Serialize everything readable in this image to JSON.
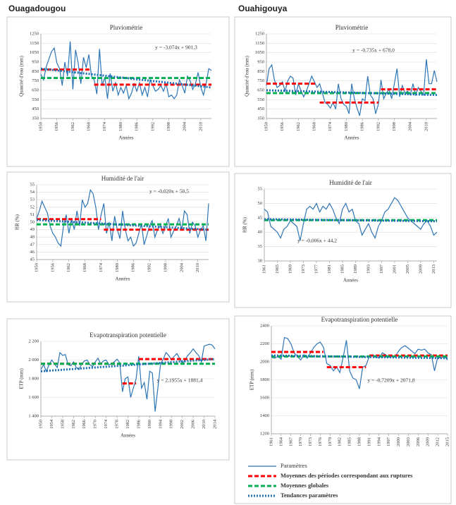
{
  "headers": [
    "Ouagadougou",
    "Ouahigouya"
  ],
  "legend": [
    {
      "name": "Paramètres",
      "color": "#2e75b6",
      "dash": "none",
      "width": 1.2
    },
    {
      "name": "Moyennes des périodes correspondant aux ruptures",
      "color": "#ff0000",
      "dash": "6 3",
      "width": 3
    },
    {
      "name": "Moyennes globales",
      "color": "#00b050",
      "dash": "6 3",
      "width": 3
    },
    {
      "name": "Tendances paramètres",
      "color": "#1f6fb5",
      "dash": "2 2",
      "width": 3
    }
  ],
  "chart_data": [
    {
      "type": "line",
      "title": "Pluviométrie",
      "y_label": "Quantité d'eau (mm)",
      "x_label": "Années",
      "annotation": "y = -3,074x + 901,3",
      "xlim": [
        1950,
        2014
      ],
      "xticks": [
        1950,
        1956,
        1962,
        1968,
        1974,
        1980,
        1986,
        1992,
        1998,
        2004,
        2010
      ],
      "ylim": [
        350,
        1250
      ],
      "yticks": [
        350,
        450,
        550,
        650,
        750,
        850,
        950,
        1050,
        1150,
        1250
      ],
      "grid": true,
      "x": [
        1950,
        1951,
        1952,
        1953,
        1954,
        1955,
        1956,
        1957,
        1958,
        1959,
        1960,
        1961,
        1962,
        1963,
        1964,
        1965,
        1966,
        1967,
        1968,
        1969,
        1970,
        1971,
        1972,
        1973,
        1974,
        1975,
        1976,
        1977,
        1978,
        1979,
        1980,
        1981,
        1982,
        1983,
        1984,
        1985,
        1986,
        1987,
        1988,
        1989,
        1990,
        1991,
        1992,
        1993,
        1994,
        1995,
        1996,
        1997,
        1998,
        1999,
        2000,
        2001,
        2002,
        2003,
        2004,
        2005,
        2006,
        2007,
        2008,
        2009,
        2010,
        2011,
        2012,
        2013,
        2014
      ],
      "values": [
        820,
        760,
        900,
        980,
        1060,
        1100,
        940,
        880,
        700,
        950,
        800,
        1170,
        660,
        1080,
        940,
        720,
        1000,
        890,
        1030,
        800,
        760,
        610,
        1090,
        700,
        790,
        560,
        830,
        640,
        730,
        600,
        680,
        620,
        700,
        560,
        620,
        720,
        640,
        730,
        600,
        680,
        580,
        760,
        700,
        640,
        660,
        700,
        640,
        720,
        580,
        600,
        560,
        600,
        760,
        700,
        620,
        800,
        750,
        660,
        720,
        840,
        680,
        600,
        720,
        880,
        860
      ],
      "period_means": [
        {
          "x": [
            1950,
            1969
          ],
          "value": 870
        },
        {
          "x": [
            1970,
            2014
          ],
          "value": 710
        }
      ],
      "global_mean": 780,
      "trend": {
        "x": [
          1950,
          2014
        ],
        "values": [
          880,
          680
        ]
      }
    },
    {
      "type": "line",
      "title": "Pluviométrie",
      "y_label": "Quantité d'eau (mm)",
      "x_label": "Années",
      "annotation": "y = -0,735x + 678,0",
      "xlim": [
        1950,
        2014
      ],
      "xticks": [
        1950,
        1956,
        1962,
        1968,
        1974,
        1980,
        1986,
        1992,
        1998,
        2004,
        2010
      ],
      "ylim": [
        350,
        1250
      ],
      "yticks": [
        350,
        450,
        550,
        650,
        750,
        850,
        950,
        1050,
        1150,
        1250
      ],
      "grid": true,
      "x": [
        1950,
        1951,
        1952,
        1953,
        1954,
        1955,
        1956,
        1957,
        1958,
        1959,
        1960,
        1961,
        1962,
        1963,
        1964,
        1965,
        1966,
        1967,
        1968,
        1969,
        1970,
        1971,
        1972,
        1973,
        1974,
        1975,
        1976,
        1977,
        1978,
        1979,
        1980,
        1981,
        1982,
        1983,
        1984,
        1985,
        1986,
        1987,
        1988,
        1989,
        1990,
        1991,
        1992,
        1993,
        1994,
        1995,
        1996,
        1997,
        1998,
        1999,
        2000,
        2001,
        2002,
        2003,
        2004,
        2005,
        2006,
        2007,
        2008,
        2009,
        2010,
        2011,
        2012,
        2013,
        2014
      ],
      "values": [
        700,
        880,
        920,
        760,
        680,
        700,
        740,
        640,
        750,
        800,
        780,
        600,
        720,
        640,
        580,
        640,
        720,
        800,
        740,
        680,
        720,
        620,
        520,
        500,
        460,
        520,
        450,
        720,
        560,
        500,
        480,
        400,
        720,
        560,
        460,
        380,
        560,
        540,
        800,
        600,
        560,
        400,
        500,
        760,
        560,
        620,
        660,
        560,
        720,
        880,
        580,
        700,
        620,
        640,
        600,
        720,
        600,
        680,
        640,
        600,
        980,
        720,
        720,
        860,
        740
      ],
      "period_means": [
        {
          "x": [
            1950,
            1969
          ],
          "value": 720
        },
        {
          "x": [
            1970,
            1992
          ],
          "value": 520
        },
        {
          "x": [
            1993,
            2014
          ],
          "value": 660
        }
      ],
      "global_mean": 620,
      "trend": {
        "x": [
          1950,
          2014
        ],
        "values": [
          650,
          600
        ]
      }
    },
    {
      "type": "line",
      "title": "Humidité de l'air",
      "y_label": "HR (%)",
      "x_label": "Années",
      "annotation": "y = -0,020x + 50,5",
      "xlim": [
        1950,
        2014
      ],
      "xticks": [
        1950,
        1956,
        1962,
        1968,
        1974,
        1980,
        1986,
        1992,
        1998,
        2004,
        2010
      ],
      "ylim": [
        45,
        55
      ],
      "yticks": [
        45,
        46,
        47,
        48,
        49,
        50,
        51,
        52,
        53,
        54,
        55
      ],
      "grid": true,
      "x": [
        1950,
        1951,
        1952,
        1953,
        1954,
        1955,
        1956,
        1957,
        1958,
        1959,
        1960,
        1961,
        1962,
        1963,
        1964,
        1965,
        1966,
        1967,
        1968,
        1969,
        1970,
        1971,
        1972,
        1973,
        1974,
        1975,
        1976,
        1977,
        1978,
        1979,
        1980,
        1981,
        1982,
        1983,
        1984,
        1985,
        1986,
        1987,
        1988,
        1989,
        1990,
        1991,
        1992,
        1993,
        1994,
        1995,
        1996,
        1997,
        1998,
        1999,
        2000,
        2001,
        2002,
        2003,
        2004,
        2005,
        2006,
        2007,
        2008,
        2009,
        2010,
        2011,
        2012,
        2013,
        2014
      ],
      "values": [
        50.5,
        51.5,
        52.8,
        52.0,
        51.2,
        49.5,
        48.5,
        48.0,
        47.2,
        46.8,
        49.5,
        51.0,
        48.5,
        50.5,
        49.0,
        51.5,
        49.5,
        53.0,
        52.0,
        52.5,
        54.3,
        53.8,
        52.0,
        49.0,
        51.0,
        52.5,
        48.5,
        50.0,
        47.5,
        50.8,
        49.0,
        47.8,
        51.5,
        49.0,
        47.5,
        48.0,
        46.8,
        47.2,
        48.5,
        49.8,
        47.0,
        48.2,
        49.5,
        50.2,
        48.0,
        49.0,
        49.5,
        48.5,
        49.5,
        50.5,
        48.0,
        48.8,
        49.5,
        50.5,
        49.0,
        51.5,
        51.0,
        48.5,
        50.0,
        49.5,
        48.0,
        49.0,
        49.5,
        47.5,
        52.5
      ],
      "period_means": [
        {
          "x": [
            1950,
            1974
          ],
          "value": 50.4
        },
        {
          "x": [
            1975,
            2014
          ],
          "value": 49.0
        }
      ],
      "global_mean": 49.7,
      "trend": {
        "x": [
          1950,
          2014
        ],
        "values": [
          50.3,
          49.0
        ]
      }
    },
    {
      "type": "line",
      "title": "Humidité de l'air",
      "y_label": "HR (%)",
      "x_label": "Années",
      "annotation": "y = -0,006x + 44,2",
      "xlim": [
        1961,
        2014
      ],
      "xticks": [
        1961,
        1965,
        1969,
        1973,
        1977,
        1981,
        1985,
        1989,
        1993,
        1997,
        2001,
        2005,
        2009,
        2013
      ],
      "ylim": [
        30,
        55
      ],
      "yticks": [
        30,
        35,
        40,
        45,
        50,
        55
      ],
      "grid": true,
      "x": [
        1961,
        1962,
        1963,
        1964,
        1965,
        1966,
        1967,
        1968,
        1969,
        1970,
        1971,
        1972,
        1973,
        1974,
        1975,
        1976,
        1977,
        1978,
        1979,
        1980,
        1981,
        1982,
        1983,
        1984,
        1985,
        1986,
        1987,
        1988,
        1989,
        1990,
        1991,
        1992,
        1993,
        1994,
        1995,
        1996,
        1997,
        1998,
        1999,
        2000,
        2001,
        2002,
        2003,
        2004,
        2005,
        2006,
        2007,
        2008,
        2009,
        2010,
        2011,
        2012,
        2013,
        2014
      ],
      "values": [
        48,
        47,
        42,
        41,
        40,
        38,
        41,
        42,
        44,
        43,
        42,
        37,
        43,
        48,
        49,
        48,
        50,
        47,
        49,
        48,
        50,
        48,
        45,
        43,
        48,
        50,
        47,
        48,
        44,
        43,
        39,
        41,
        43,
        40,
        38,
        42,
        44,
        47,
        48,
        50,
        52,
        51,
        49,
        47,
        45,
        44,
        43,
        42,
        41,
        43,
        44,
        42,
        39,
        40
      ],
      "global_mean": 44.2,
      "trend": {
        "x": [
          1961,
          2014
        ],
        "values": [
          44.5,
          43.8
        ]
      }
    },
    {
      "type": "line",
      "title": "Evapotranspiration potentielle",
      "y_label": "ETP (mm)",
      "x_label": "Années",
      "annotation": "y = 2,1955x + 1881,4",
      "xlim": [
        1950,
        2014
      ],
      "xticks": [
        1950,
        1954,
        1958,
        1962,
        1966,
        1970,
        1974,
        1978,
        1982,
        1986,
        1990,
        1994,
        1998,
        2002,
        2006,
        2010,
        2014
      ],
      "ylim": [
        1400,
        2200
      ],
      "yticks": [
        {
          "value": 1400,
          "label": "1 400"
        },
        {
          "value": 1600,
          "label": "1 600"
        },
        {
          "value": 1800,
          "label": "1 800"
        },
        {
          "value": 2000,
          "label": "2 000"
        },
        {
          "value": 2200,
          "label": "2 200"
        }
      ],
      "grid": true,
      "x": [
        1950,
        1951,
        1952,
        1953,
        1954,
        1955,
        1956,
        1957,
        1958,
        1959,
        1960,
        1961,
        1962,
        1963,
        1964,
        1965,
        1966,
        1967,
        1968,
        1969,
        1970,
        1971,
        1972,
        1973,
        1974,
        1975,
        1976,
        1977,
        1978,
        1979,
        1980,
        1981,
        1982,
        1983,
        1984,
        1985,
        1986,
        1987,
        1988,
        1989,
        1990,
        1991,
        1992,
        1993,
        1994,
        1995,
        1996,
        1997,
        1998,
        1999,
        2000,
        2001,
        2002,
        2003,
        2004,
        2005,
        2006,
        2007,
        2008,
        2009,
        2010,
        2011,
        2012,
        2013,
        2014
      ],
      "values": [
        1900,
        1950,
        1880,
        1950,
        2000,
        1960,
        1920,
        2080,
        2050,
        2060,
        1950,
        1940,
        1980,
        1920,
        1900,
        1960,
        1990,
        2000,
        1950,
        1930,
        1980,
        2020,
        1960,
        1990,
        2000,
        1950,
        1960,
        1980,
        2010,
        1970,
        1660,
        1800,
        1820,
        1600,
        1700,
        1800,
        2040,
        1700,
        1760,
        1580,
        1880,
        1860,
        1450,
        1700,
        1960,
        2010,
        2080,
        2050,
        2000,
        2040,
        2070,
        2020,
        1960,
        2000,
        2050,
        2080,
        2120,
        2080,
        2050,
        1980,
        2150,
        2160,
        2170,
        2160,
        2120
      ],
      "period_means": [
        {
          "x": [
            1950,
            1979
          ],
          "value": 1960
        },
        {
          "x": [
            1980,
            1985
          ],
          "value": 1750
        },
        {
          "x": [
            1986,
            2014
          ],
          "value": 2010
        }
      ],
      "global_mean": 1960,
      "trend": {
        "x": [
          1950,
          2014
        ],
        "values": [
          1880,
          2010
        ]
      }
    },
    {
      "type": "line",
      "title": "Evapotranspiration potentielle",
      "y_label": "ETP (mm)",
      "annotation": "y = -0,7209x + 2071,8",
      "xlim": [
        1961,
        2015
      ],
      "xticks": [
        1961,
        1964,
        1967,
        1970,
        1973,
        1976,
        1979,
        1982,
        1985,
        1988,
        1991,
        1994,
        1997,
        2000,
        2003,
        2006,
        2009,
        2012,
        2015
      ],
      "ylim": [
        1200,
        2400
      ],
      "yticks": [
        1200,
        1400,
        1600,
        1800,
        2000,
        2200,
        2400
      ],
      "grid": true,
      "x": [
        1961,
        1962,
        1963,
        1964,
        1965,
        1966,
        1967,
        1968,
        1969,
        1970,
        1971,
        1972,
        1973,
        1974,
        1975,
        1976,
        1977,
        1978,
        1979,
        1980,
        1981,
        1982,
        1983,
        1984,
        1985,
        1986,
        1987,
        1988,
        1989,
        1990,
        1991,
        1992,
        1993,
        1994,
        1995,
        1996,
        1997,
        1998,
        1999,
        2000,
        2001,
        2002,
        2003,
        2004,
        2005,
        2006,
        2007,
        2008,
        2009,
        2010,
        2011,
        2012,
        2013,
        2014,
        2015
      ],
      "values": [
        2050,
        2040,
        2060,
        2030,
        2270,
        2260,
        2200,
        2100,
        2060,
        2020,
        2080,
        2040,
        2100,
        2160,
        2200,
        2220,
        2160,
        1980,
        1960,
        1900,
        1940,
        1880,
        2050,
        2240,
        1900,
        1820,
        1800,
        1700,
        1940,
        1960,
        2060,
        2080,
        2060,
        2040,
        2100,
        2080,
        2050,
        2060,
        2060,
        2120,
        2160,
        2180,
        2150,
        2120,
        2090,
        2140,
        2130,
        2140,
        2100,
        2080,
        1900,
        2050,
        2040,
        2060,
        2020
      ],
      "period_means": [
        {
          "x": [
            1961,
            1977
          ],
          "value": 2110
        },
        {
          "x": [
            1978,
            1990
          ],
          "value": 1940
        },
        {
          "x": [
            1991,
            2015
          ],
          "value": 2070
        }
      ],
      "global_mean": 2060,
      "trend": {
        "x": [
          1961,
          2015
        ],
        "values": [
          2070,
          2040
        ]
      }
    }
  ]
}
